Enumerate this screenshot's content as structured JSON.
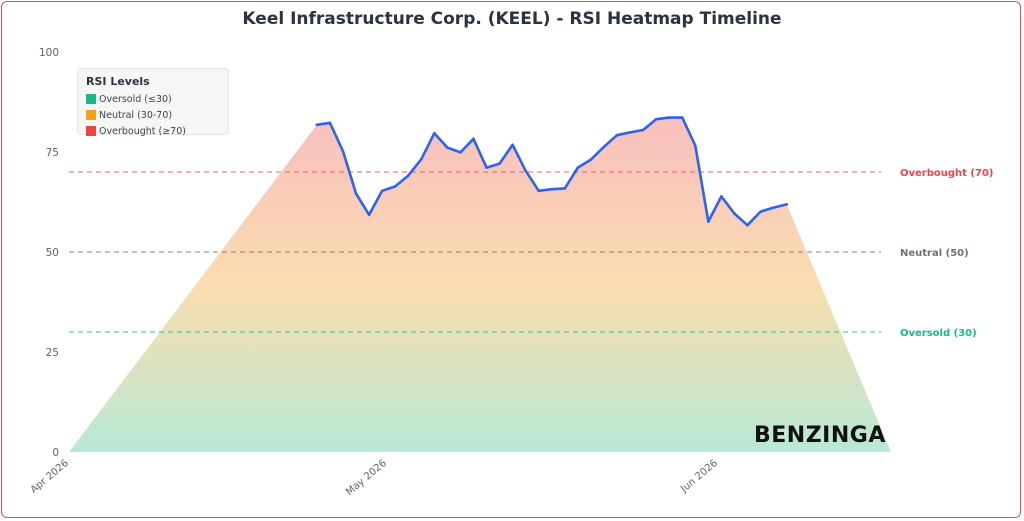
{
  "chart_data": {
    "type": "area",
    "title": "Keel Infrastructure Corp. (KEEL) - RSI Heatmap Timeline",
    "xlabel": "",
    "ylabel": "",
    "ylim": [
      0,
      100
    ],
    "y_ticks": [
      0,
      25,
      50,
      75,
      100
    ],
    "x_ticks": [
      "Apr 2026",
      "May 2026",
      "Jun 2026"
    ],
    "grid": false,
    "legend_position": "top-left",
    "legend": {
      "title": "RSI Levels",
      "items": [
        {
          "label": "Oversold (≤30)",
          "color": "#19b884"
        },
        {
          "label": "Neutral (30-70)",
          "color": "#f5a01a"
        },
        {
          "label": "Overbought (≥70)",
          "color": "#ef4444"
        }
      ]
    },
    "reference_lines": [
      {
        "label": "Overbought (70)",
        "value": 70,
        "color": "#ef4444"
      },
      {
        "label": "Neutral (50)",
        "value": 50,
        "color": "#6b7280"
      },
      {
        "label": "Oversold (30)",
        "value": 30,
        "color": "#19b884"
      }
    ],
    "series": [
      {
        "values": [
          {
            "x": "2026-04-20",
            "y": 81.8
          },
          {
            "x": "2026-04-21",
            "y": 82.3
          },
          {
            "x": "2026-04-22",
            "y": 75.2
          },
          {
            "x": "2026-04-23",
            "y": 64.6
          },
          {
            "x": "2026-04-24",
            "y": 59.3
          },
          {
            "x": "2026-04-25",
            "y": 65.3
          },
          {
            "x": "2026-04-26",
            "y": 66.4
          },
          {
            "x": "2026-04-27",
            "y": 69.1
          },
          {
            "x": "2026-04-28",
            "y": 73.2
          },
          {
            "x": "2026-04-29",
            "y": 79.7
          },
          {
            "x": "2026-04-30",
            "y": 76.1
          },
          {
            "x": "2026-05-01",
            "y": 74.9
          },
          {
            "x": "2026-05-02",
            "y": 78.3
          },
          {
            "x": "2026-05-03",
            "y": 71.1
          },
          {
            "x": "2026-05-04",
            "y": 72.1
          },
          {
            "x": "2026-05-05",
            "y": 76.8
          },
          {
            "x": "2026-05-06",
            "y": 70.3
          },
          {
            "x": "2026-05-07",
            "y": 65.3
          },
          {
            "x": "2026-05-08",
            "y": 65.7
          },
          {
            "x": "2026-05-09",
            "y": 65.9
          },
          {
            "x": "2026-05-10",
            "y": 71.1
          },
          {
            "x": "2026-05-11",
            "y": 73.1
          },
          {
            "x": "2026-05-12",
            "y": 76.3
          },
          {
            "x": "2026-05-13",
            "y": 79.2
          },
          {
            "x": "2026-05-14",
            "y": 79.9
          },
          {
            "x": "2026-05-15",
            "y": 80.5
          },
          {
            "x": "2026-05-16",
            "y": 83.2
          },
          {
            "x": "2026-05-17",
            "y": 83.6
          },
          {
            "x": "2026-05-18",
            "y": 83.6
          },
          {
            "x": "2026-05-19",
            "y": 76.6
          },
          {
            "x": "2026-05-20",
            "y": 57.6
          },
          {
            "x": "2026-05-21",
            "y": 63.9
          },
          {
            "x": "2026-05-22",
            "y": 59.6
          },
          {
            "x": "2026-05-23",
            "y": 56.7
          },
          {
            "x": "2026-05-24",
            "y": 60.1
          },
          {
            "x": "2026-05-25",
            "y": 61.1
          },
          {
            "x": "2026-05-26",
            "y": 61.9
          }
        ]
      }
    ]
  },
  "watermark": "BENZINGA"
}
